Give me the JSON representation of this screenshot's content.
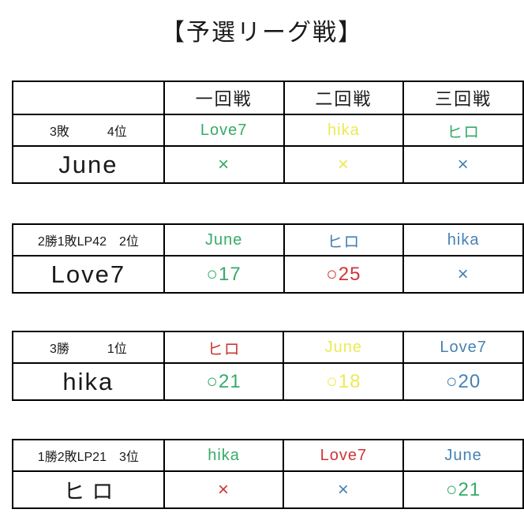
{
  "title": "【予選リーグ戦】",
  "colors": {
    "green": "#37AA69",
    "yellow": "#EDE955",
    "blue": "#4682B4",
    "red": "#CD3737",
    "black": "#1A1A1A"
  },
  "round_headers": [
    "一回戦",
    "二回戦",
    "三回戦"
  ],
  "tables": [
    {
      "player": "June",
      "record": "3敗　　　4位",
      "opponents": [
        {
          "name": "Love7",
          "color": "green"
        },
        {
          "name": "hika",
          "color": "yellow"
        },
        {
          "name": "ヒロ",
          "color": "green"
        }
      ],
      "results": [
        {
          "text": "×",
          "color": "green"
        },
        {
          "text": "×",
          "color": "yellow"
        },
        {
          "text": "×",
          "color": "blue"
        }
      ]
    },
    {
      "player": "Love7",
      "record": "2勝1敗LP42　2位",
      "opponents": [
        {
          "name": "June",
          "color": "green"
        },
        {
          "name": "ヒロ",
          "color": "blue"
        },
        {
          "name": "hika",
          "color": "blue"
        }
      ],
      "results": [
        {
          "text": "○17",
          "color": "green"
        },
        {
          "text": "○25",
          "color": "red"
        },
        {
          "text": "×",
          "color": "blue"
        }
      ]
    },
    {
      "player": "hika",
      "record": "3勝　　　1位",
      "opponents": [
        {
          "name": "ヒロ",
          "color": "red"
        },
        {
          "name": "June",
          "color": "yellow"
        },
        {
          "name": "Love7",
          "color": "blue"
        }
      ],
      "results": [
        {
          "text": "○21",
          "color": "green"
        },
        {
          "text": "○18",
          "color": "yellow"
        },
        {
          "text": "○20",
          "color": "blue"
        }
      ]
    },
    {
      "player": "ヒロ",
      "record": "1勝2敗LP21　3位",
      "opponents": [
        {
          "name": "hika",
          "color": "green"
        },
        {
          "name": "Love7",
          "color": "red"
        },
        {
          "name": "June",
          "color": "blue"
        }
      ],
      "results": [
        {
          "text": "×",
          "color": "red"
        },
        {
          "text": "×",
          "color": "blue"
        },
        {
          "text": "○21",
          "color": "green"
        }
      ]
    }
  ]
}
